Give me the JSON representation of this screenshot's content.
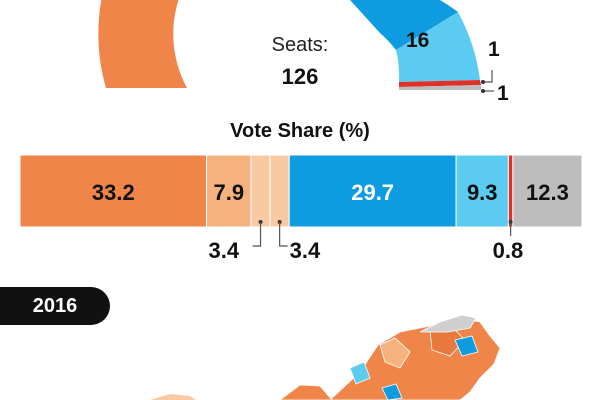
{
  "seats": {
    "label": "Seats:",
    "total": "126"
  },
  "seat_arc": {
    "labels": [
      "16",
      "1",
      "1"
    ]
  },
  "vote_share": {
    "title": "Vote Share (%)"
  },
  "badge": {
    "year": "2016"
  },
  "colors": {
    "orange": "#f0854a",
    "light_orange": "#f6b27d",
    "pale_orange": "#f9c9a2",
    "blue": "#0e9be0",
    "light_blue": "#5ccbf2",
    "red": "#e0302a",
    "grey": "#bdbdbd",
    "map_grey": "#cfcfcf"
  },
  "chart_data": {
    "type": "bar",
    "title": "Vote Share (%)",
    "orientation": "horizontal-stacked",
    "segments": [
      {
        "value": 33.2,
        "label": "33.2",
        "color": "#f0854a"
      },
      {
        "value": 7.9,
        "label": "7.9",
        "color": "#f6b27d"
      },
      {
        "value": 3.4,
        "label": "3.4",
        "color": "#f9c9a2"
      },
      {
        "value": 3.4,
        "label": "3.4",
        "color": "#f9c9a2"
      },
      {
        "value": 29.7,
        "label": "29.7",
        "color": "#0e9be0"
      },
      {
        "value": 9.3,
        "label": "9.3",
        "color": "#5ccbf2"
      },
      {
        "value": 0.8,
        "label": "0.8",
        "color": "#e0302a"
      },
      {
        "value": 12.3,
        "label": "12.3",
        "color": "#bdbdbd"
      }
    ]
  }
}
